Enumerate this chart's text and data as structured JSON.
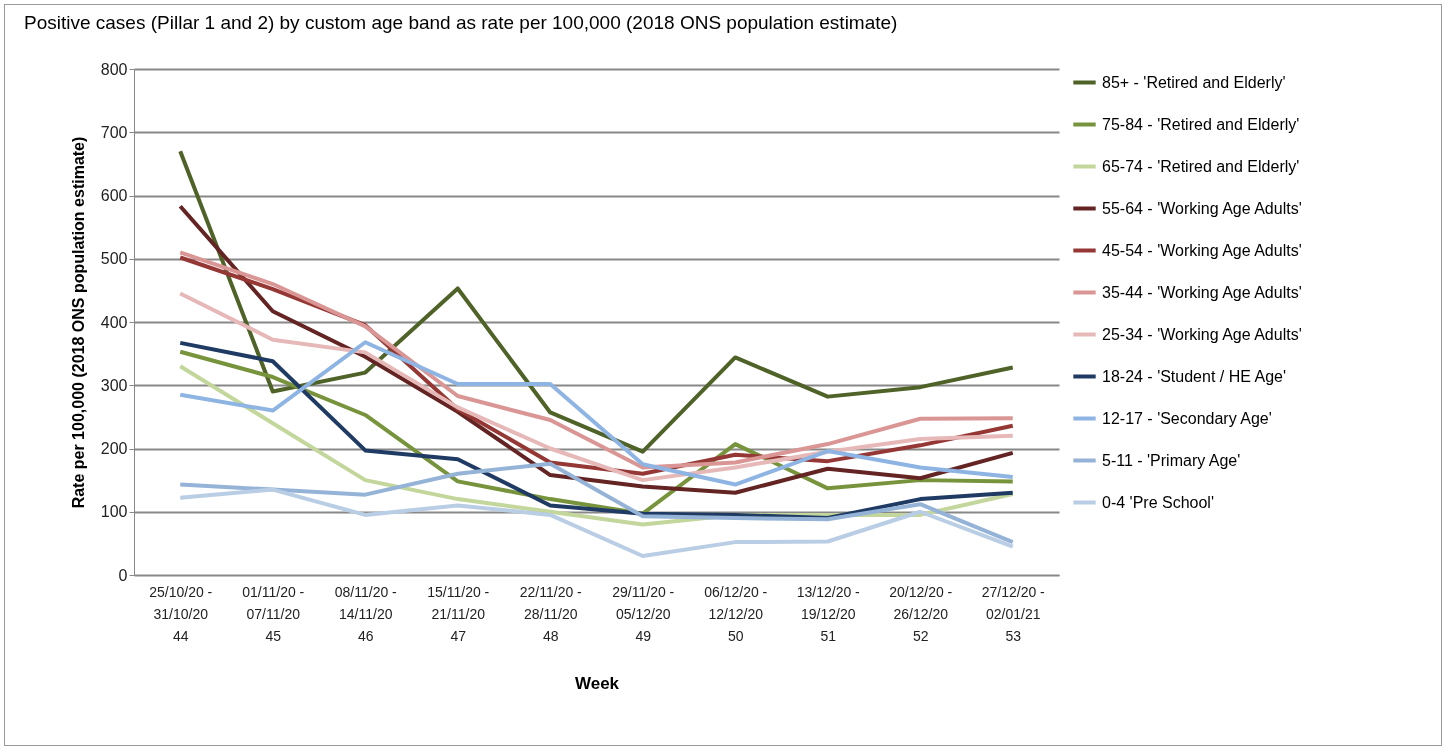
{
  "chart_data": {
    "type": "line",
    "title": "Positive cases (Pillar 1 and 2) by custom age band as rate per 100,000 (2018 ONS population estimate)",
    "xlabel": "Week",
    "ylabel": "Rate per 100,000 (2018 ONS population estimate)",
    "categories": [
      "25/10/20 -\n31/10/20\n\n44",
      "01/11/20 -\n07/11/20\n\n45",
      "08/11/20 -\n14/11/20\n\n46",
      "15/11/20 -\n21/11/20\n\n47",
      "22/11/20 -\n28/11/20\n\n48",
      "29/11/20 -\n05/12/20\n\n49",
      "06/12/20 -\n12/12/20\n\n50",
      "13/12/20 -\n19/12/20\n\n51",
      "20/12/20 -\n26/12/20\n\n52",
      "27/12/20 -\n02/01/21\n\n53"
    ],
    "ylim": [
      0,
      800
    ],
    "yticks": [
      0,
      100,
      200,
      300,
      400,
      500,
      600,
      700,
      800
    ],
    "grid": "y",
    "legend": "right",
    "line_style": "solid",
    "marker": "none",
    "series": [
      {
        "name": "85+ - 'Retired and Elderly'",
        "color": "#4f6228",
        "values": [
          670,
          290,
          320,
          453,
          257,
          195,
          344,
          282,
          297,
          328
        ]
      },
      {
        "name": "75-84 - 'Retired and Elderly'",
        "color": "#77933c",
        "values": [
          353,
          313,
          253,
          148,
          120,
          97,
          207,
          137,
          150,
          148
        ]
      },
      {
        "name": "65-74 - 'Retired and Elderly'",
        "color": "#c3d69b",
        "values": [
          330,
          240,
          150,
          120,
          100,
          80,
          95,
          95,
          95,
          128
        ]
      },
      {
        "name": "55-64 - 'Working Age Adults'",
        "color": "#632423",
        "values": [
          583,
          417,
          345,
          258,
          158,
          140,
          130,
          168,
          153,
          193
        ]
      },
      {
        "name": "45-54 - 'Working Age Adults'",
        "color": "#953735",
        "values": [
          502,
          452,
          395,
          262,
          178,
          160,
          190,
          180,
          205,
          236
        ]
      },
      {
        "name": "35-44 - 'Working Age Adults'",
        "color": "#d99694",
        "values": [
          510,
          460,
          393,
          283,
          245,
          170,
          178,
          207,
          247,
          248
        ]
      },
      {
        "name": "25-34 - 'Working Age Adults'",
        "color": "#e6b9b8",
        "values": [
          445,
          372,
          352,
          265,
          200,
          150,
          170,
          195,
          215,
          220
        ]
      },
      {
        "name": "18-24 - 'Student / HE Age'",
        "color": "#1f3b64",
        "values": [
          367,
          338,
          197,
          183,
          110,
          97,
          95,
          90,
          120,
          130
        ]
      },
      {
        "name": "12-17 - 'Secondary Age'",
        "color": "#8eb4e3",
        "values": [
          285,
          260,
          368,
          302,
          302,
          175,
          143,
          196,
          170,
          155
        ]
      },
      {
        "name": "5-11 - 'Primary Age'",
        "color": "#95b3d7",
        "values": [
          143,
          135,
          127,
          160,
          176,
          93,
          90,
          88,
          112,
          52
        ]
      },
      {
        "name": "0-4 'Pre School'",
        "color": "#b9cde5",
        "values": [
          122,
          135,
          95,
          110,
          95,
          30,
          52,
          53,
          100,
          45
        ]
      }
    ]
  }
}
